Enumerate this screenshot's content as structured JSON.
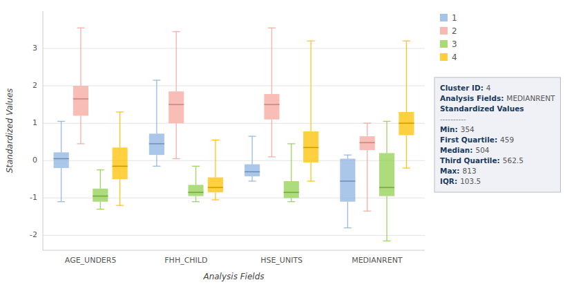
{
  "chart_data": {
    "type": "box",
    "xlabel": "Analysis Fields",
    "ylabel": "Standardized Values",
    "categories": [
      "AGE_UNDER5",
      "FHH_CHILD",
      "HSE_UNITS",
      "MEDIANRENT"
    ],
    "series": [
      {
        "name": "1",
        "color": "#8db4e2",
        "values": [
          {
            "whislo": -1.1,
            "q1": -0.2,
            "med": 0.05,
            "q3": 0.22,
            "whishi": 1.05
          },
          {
            "whislo": -0.15,
            "q1": 0.15,
            "med": 0.45,
            "q3": 0.72,
            "whishi": 2.15
          },
          {
            "whislo": -0.55,
            "q1": -0.42,
            "med": -0.3,
            "q3": -0.1,
            "whishi": 0.65
          },
          {
            "whislo": -1.8,
            "q1": -1.1,
            "med": -0.55,
            "q3": 0.05,
            "whishi": 0.15
          }
        ]
      },
      {
        "name": "2",
        "color": "#f4a79d",
        "values": [
          {
            "whislo": 0.45,
            "q1": 1.2,
            "med": 1.65,
            "q3": 2.0,
            "whishi": 3.55
          },
          {
            "whislo": 0.05,
            "q1": 1.0,
            "med": 1.5,
            "q3": 1.85,
            "whishi": 3.45
          },
          {
            "whislo": 0.1,
            "q1": 1.1,
            "med": 1.5,
            "q3": 1.78,
            "whishi": 3.55
          },
          {
            "whislo": -1.35,
            "q1": 0.28,
            "med": 0.48,
            "q3": 0.65,
            "whishi": 1.0
          }
        ]
      },
      {
        "name": "3",
        "color": "#92d050",
        "values": [
          {
            "whislo": -1.3,
            "q1": -1.1,
            "med": -0.95,
            "q3": -0.75,
            "whishi": -0.25
          },
          {
            "whislo": -1.1,
            "q1": -0.95,
            "med": -0.85,
            "q3": -0.65,
            "whishi": -0.15
          },
          {
            "whislo": -1.1,
            "q1": -1.0,
            "med": -0.85,
            "q3": -0.55,
            "whishi": 0.45
          },
          {
            "whislo": -2.15,
            "q1": -0.95,
            "med": -0.72,
            "q3": 0.2,
            "whishi": 1.05
          }
        ]
      },
      {
        "name": "4",
        "color": "#ffc000",
        "values": [
          {
            "whislo": -1.2,
            "q1": -0.5,
            "med": -0.15,
            "q3": 0.35,
            "whishi": 1.3
          },
          {
            "whislo": -1.05,
            "q1": -0.85,
            "med": -0.72,
            "q3": -0.45,
            "whishi": 0.55
          },
          {
            "whislo": -0.55,
            "q1": -0.05,
            "med": 0.35,
            "q3": 0.78,
            "whishi": 3.2
          },
          {
            "whislo": -0.2,
            "q1": 0.68,
            "med": 1.0,
            "q3": 1.3,
            "whishi": 3.2
          }
        ]
      }
    ],
    "ylim": [
      -2.4,
      4.0
    ],
    "yticks": [
      -2,
      -1,
      0,
      1,
      2,
      3
    ],
    "grid": true,
    "legend": "right",
    "annotations": [
      {
        "label": "Cluster ID:",
        "text": "4"
      },
      {
        "label": "Analysis Fields:",
        "text": "MEDIANRENT"
      },
      {
        "label": "Standardized Values"
      },
      {
        "label": "----------"
      },
      {
        "label": "Min:",
        "text": "354"
      },
      {
        "label": "First Quartile:",
        "text": "459"
      },
      {
        "label": "Median:",
        "text": "504"
      },
      {
        "label": "Third Quartile:",
        "text": "562.5"
      },
      {
        "label": "Max:",
        "text": "813"
      },
      {
        "label": "IQR:",
        "text": "103.5"
      }
    ]
  }
}
